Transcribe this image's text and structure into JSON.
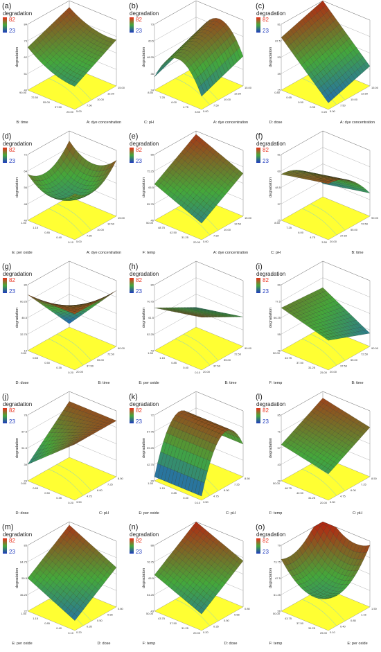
{
  "legend": {
    "title": "degradation",
    "max": "82",
    "min": "23",
    "max_color": "#e8301c",
    "min_color": "#1f3bbf"
  },
  "colors": {
    "floor": "#ffff33",
    "high": "#b22a12",
    "mid": "#44a83a",
    "low": "#1d5fc8",
    "grid": "#111111"
  },
  "chart_data": [
    {
      "label": "(a)",
      "type": "surface3d",
      "zlabel": "degradation",
      "xlabel": "A: dye concentration",
      "ylabel": "B: time",
      "xticks": [
        "5.00",
        "7.50",
        "10.00",
        "12.50",
        "15.00"
      ],
      "yticks": [
        "20.00",
        "37.50",
        "55.00",
        "72.50",
        "90.00"
      ],
      "zticks": [
        "40",
        "51",
        "62",
        "73",
        "84"
      ]
    },
    {
      "label": "(b)",
      "type": "surface3d",
      "zlabel": "degradation",
      "xlabel": "A: dye concentration",
      "ylabel": "C: pH",
      "xticks": [
        "5.00",
        "7.50",
        "10.00",
        "12.50",
        "15.00"
      ],
      "yticks": [
        "3.50",
        "4.75",
        "6.00",
        "7.25",
        "8.50"
      ],
      "zticks": [
        "24",
        "36",
        "48.25",
        "60.5",
        "73"
      ]
    },
    {
      "label": "(c)",
      "type": "surface3d",
      "zlabel": "degradation",
      "xlabel": "A: dye concentration",
      "ylabel": "D: dose",
      "xticks": [
        "5.00",
        "7.50",
        "10.00",
        "12.50",
        "15.00"
      ],
      "yticks": [
        "0.20",
        "0.35",
        "0.50",
        "0.65",
        "0.80"
      ],
      "zticks": [
        "25",
        "39",
        "53",
        "67.5",
        "81"
      ]
    },
    {
      "label": "(d)",
      "type": "surface3d",
      "zlabel": "degradation",
      "xlabel": "A: dye concentration",
      "ylabel": "E: per oxide",
      "xticks": [
        "5.00",
        "7.50",
        "10.00",
        "12.50",
        "15.00"
      ],
      "yticks": [
        "0.10",
        "0.40",
        "0.85",
        "1.15",
        "1.50"
      ],
      "zticks": [
        "40",
        "48",
        "56",
        "64",
        "72"
      ]
    },
    {
      "label": "(e)",
      "type": "surface3d",
      "zlabel": "degradation",
      "xlabel": "A: dye concentration",
      "ylabel": "F: temp",
      "xticks": [
        "5.00",
        "7.50",
        "10.00",
        "12.50",
        "15.00"
      ],
      "yticks": [
        "20.00",
        "31.25",
        "42.50",
        "48.75",
        "50.00"
      ],
      "zticks": [
        "46",
        "55.75",
        "65.5",
        "75.25",
        "85"
      ]
    },
    {
      "label": "(f)",
      "type": "surface3d",
      "zlabel": "degradation",
      "xlabel": "B: time",
      "ylabel": "C: pH",
      "xticks": [
        "20.00",
        "37.50",
        "55.00",
        "72.50",
        "90.00"
      ],
      "yticks": [
        "3.50",
        "4.75",
        "6.00",
        "7.25",
        "8.50"
      ],
      "zticks": [
        "25",
        "37",
        "48.5",
        "60",
        "81"
      ]
    },
    {
      "label": "(g)",
      "type": "surface3d",
      "zlabel": "degradation",
      "xlabel": "B: time",
      "ylabel": "D: dose",
      "xticks": [
        "20.00",
        "37.50",
        "55.00",
        "72.50",
        "90.00"
      ],
      "yticks": [
        "0.20",
        "0.35",
        "0.50",
        "0.65",
        "0.80"
      ],
      "zticks": [
        "19",
        "32.75",
        "46.5",
        "60.25",
        "80"
      ]
    },
    {
      "label": "(h)",
      "type": "surface3d",
      "zlabel": "degradation",
      "xlabel": "B: time",
      "ylabel": "E: per oxide",
      "xticks": [
        "20.00",
        "37.50",
        "55.00",
        "72.50",
        "90.00"
      ],
      "yticks": [
        "0.10",
        "0.40",
        "0.85",
        "1.15",
        "1.50"
      ],
      "zticks": [
        "43",
        "52.25",
        "61.5",
        "70.75",
        "80"
      ]
    },
    {
      "label": "(i)",
      "type": "surface3d",
      "zlabel": "degradation",
      "xlabel": "B: time",
      "ylabel": "F: temp",
      "xticks": [
        "20.00",
        "37.50",
        "55.00",
        "72.50",
        "90.00"
      ],
      "yticks": [
        "25.00",
        "31.25",
        "37.50",
        "43.75",
        "50.00"
      ],
      "zticks": [
        "46",
        "55",
        "66.25",
        "77.5",
        "89"
      ]
    },
    {
      "label": "(j)",
      "type": "surface3d",
      "zlabel": "degradation",
      "xlabel": "C: pH",
      "ylabel": "D: dose",
      "xticks": [
        "3.50",
        "4.75",
        "6.00",
        "7.25",
        "8.50"
      ],
      "yticks": [
        "0.20",
        "0.35",
        "0.50",
        "0.65",
        "0.80"
      ],
      "zticks": [
        "24",
        "39",
        "51.5",
        "67.5",
        "78"
      ]
    },
    {
      "label": "(k)",
      "type": "surface3d",
      "zlabel": "degradation",
      "xlabel": "C: pH",
      "ylabel": "E: per oxide",
      "xticks": [
        "3.50",
        "4.75",
        "6.00",
        "7.25",
        "8.50"
      ],
      "yticks": [
        "0.10",
        "0.40",
        "0.85",
        "1.15",
        "1.50"
      ],
      "zticks": [
        "29",
        "42.75",
        "59.25",
        "67.75",
        "72"
      ]
    },
    {
      "label": "(l)",
      "type": "surface3d",
      "zlabel": "degradation",
      "xlabel": "C: pH",
      "ylabel": "F: temp",
      "xticks": [
        "3.50",
        "4.75",
        "6.00",
        "7.25",
        "8.50"
      ],
      "yticks": [
        "20.00",
        "31.25",
        "42.50",
        "48.75",
        "50.00"
      ],
      "zticks": [
        "29",
        "43",
        "57",
        "71",
        "85"
      ]
    },
    {
      "label": "(m)",
      "type": "surface3d",
      "zlabel": "degradation",
      "xlabel": "D: dose",
      "ylabel": "E: per oxide",
      "xticks": [
        "0.20",
        "0.35",
        "0.50",
        "0.65",
        "0.80"
      ],
      "yticks": [
        "0.10",
        "0.40",
        "0.85",
        "1.15",
        "1.50"
      ],
      "zticks": [
        "22",
        "36.25",
        "50.5",
        "64.75",
        "83"
      ]
    },
    {
      "label": "(n)",
      "type": "surface3d",
      "zlabel": "degradation",
      "xlabel": "D: dose",
      "ylabel": "F: temp",
      "xticks": [
        "0.20",
        "0.35",
        "0.50",
        "0.65",
        "0.80"
      ],
      "yticks": [
        "20.00",
        "31.25",
        "37.50",
        "43.75",
        "50.00"
      ],
      "zticks": [
        "43",
        "54.25",
        "65.5",
        "76.75",
        "88"
      ]
    },
    {
      "label": "(o)",
      "type": "surface3d",
      "zlabel": "degradation",
      "xlabel": "E: per oxide",
      "ylabel": "F: temp",
      "xticks": [
        "0.10",
        "0.40",
        "0.85",
        "1.15",
        "1.50"
      ],
      "yticks": [
        "25.00",
        "31.25",
        "37.50",
        "43.75",
        "50.00"
      ],
      "zticks": [
        "56",
        "61.25",
        "67.5",
        "73.75",
        "79"
      ]
    }
  ]
}
